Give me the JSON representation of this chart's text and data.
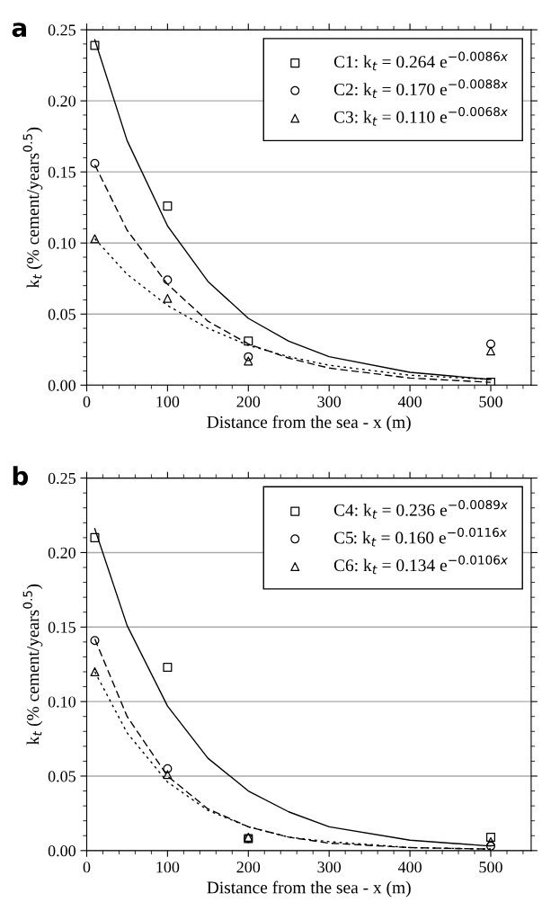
{
  "chart_data": [
    {
      "type": "scatter",
      "title": "a",
      "xlabel": "Distance from the sea - x (m)",
      "ylabel": "k$_{t}$ (% cement/years$^{0.5}$)",
      "xlim": [
        0,
        550
      ],
      "xticks": [
        0,
        100,
        200,
        300,
        400,
        500
      ],
      "ylim": [
        0,
        0.25
      ],
      "yticks": [
        {
          "value": 0,
          "label": "0.00"
        },
        {
          "value": 0.05,
          "label": "0.05"
        },
        {
          "value": 0.1,
          "label": "0.10"
        },
        {
          "value": 0.15,
          "label": "0.15"
        },
        {
          "value": 0.2,
          "label": "0.20"
        },
        {
          "value": 0.25,
          "label": "0.25"
        }
      ],
      "grid": "y",
      "legend": "top right",
      "x": [
        10,
        100,
        200,
        500
      ],
      "series": [
        {
          "name": "C1: k$_{t}$ = 0.264 e$^{−0.0086x}$",
          "color": "#000000",
          "marker": "square",
          "values": [
            0.239,
            0.126,
            0.031,
            0.002
          ]
        },
        {
          "name": "C2: k$_{t}$ = 0.170 e$^{−0.0088x}$",
          "color": "#000000",
          "marker": "circle",
          "values": [
            0.156,
            0.074,
            0.02,
            0.029
          ]
        },
        {
          "name": "C3: k$_{t}$ = 0.110 e$^{−0.0068x}$",
          "color": "#000000",
          "marker": "triangle",
          "values": [
            0.103,
            0.061,
            0.017,
            0.024
          ]
        },
        {
          "type": "line",
          "color": "#000000",
          "line_style": "solid",
          "x": [
            10,
            50,
            100,
            150,
            200,
            250,
            300,
            400,
            500
          ],
          "values": [
            0.243,
            0.172,
            0.112,
            0.073,
            0.047,
            0.031,
            0.02,
            0.009,
            0.004
          ]
        },
        {
          "type": "line",
          "color": "#000000",
          "line_style": "dashed",
          "x": [
            10,
            50,
            100,
            150,
            200,
            250,
            300,
            400,
            500
          ],
          "values": [
            0.155,
            0.109,
            0.071,
            0.045,
            0.029,
            0.019,
            0.012,
            0.005,
            0.002
          ]
        },
        {
          "type": "line",
          "color": "#000000",
          "line_style": "dotted",
          "x": [
            10,
            50,
            100,
            150,
            200,
            250,
            300,
            400,
            500
          ],
          "values": [
            0.103,
            0.078,
            0.056,
            0.04,
            0.028,
            0.02,
            0.014,
            0.007,
            0.004
          ]
        }
      ]
    },
    {
      "type": "scatter",
      "title": "b",
      "xlabel": "Distance from the sea - x (m)",
      "ylabel": "k$_{t}$ (% cement/years$^{0.5}$)",
      "xlim": [
        0,
        550
      ],
      "xticks": [
        0,
        100,
        200,
        300,
        400,
        500
      ],
      "ylim": [
        0,
        0.25
      ],
      "yticks": [
        {
          "value": 0,
          "label": "0.00"
        },
        {
          "value": 0.05,
          "label": "0.05"
        },
        {
          "value": 0.1,
          "label": "0.10"
        },
        {
          "value": 0.15,
          "label": "0.15"
        },
        {
          "value": 0.2,
          "label": "0.20"
        },
        {
          "value": 0.25,
          "label": "0.25"
        }
      ],
      "grid": "y",
      "legend": "top right",
      "x": [
        10,
        100,
        200,
        500
      ],
      "series": [
        {
          "name": "C4: k$_{t}$ = 0.236 e$^{−0.0089x}$",
          "color": "#000000",
          "marker": "square",
          "values": [
            0.21,
            0.123,
            0.008,
            0.009
          ]
        },
        {
          "name": "C5: k$_{t}$ = 0.160 e$^{−0.0116x}$",
          "color": "#000000",
          "marker": "circle",
          "values": [
            0.141,
            0.055,
            0.008,
            0.003
          ]
        },
        {
          "name": "C6: k$_{t}$ = 0.134 e$^{−0.0106x}$",
          "color": "#000000",
          "marker": "triangle",
          "values": [
            0.12,
            0.051,
            0.009,
            0.006
          ]
        },
        {
          "type": "line",
          "color": "#000000",
          "line_style": "solid",
          "x": [
            10,
            50,
            100,
            150,
            200,
            250,
            300,
            400,
            500
          ],
          "values": [
            0.216,
            0.151,
            0.097,
            0.062,
            0.04,
            0.026,
            0.016,
            0.007,
            0.003
          ]
        },
        {
          "type": "line",
          "color": "#000000",
          "line_style": "dashed",
          "x": [
            10,
            50,
            100,
            150,
            200,
            250,
            300,
            400,
            500
          ],
          "values": [
            0.142,
            0.09,
            0.05,
            0.028,
            0.016,
            0.009,
            0.005,
            0.002,
            0.001
          ]
        },
        {
          "type": "line",
          "color": "#000000",
          "line_style": "dotted",
          "x": [
            10,
            50,
            100,
            150,
            200,
            250,
            300,
            400,
            500
          ],
          "values": [
            0.12,
            0.079,
            0.046,
            0.027,
            0.016,
            0.009,
            0.006,
            0.002,
            0.001
          ]
        }
      ]
    }
  ]
}
